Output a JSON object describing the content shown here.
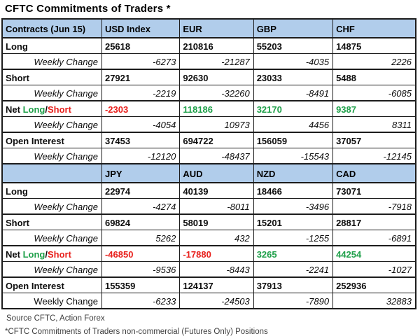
{
  "title": "CFTC Commitments of Traders *",
  "labels": {
    "long": "Long",
    "short": "Short",
    "open_interest": "Open Interest",
    "weekly_change": "Weekly Change"
  },
  "net_label": {
    "net": "Net ",
    "long": "Long",
    "slash": "/",
    "short": "Short"
  },
  "colors": {
    "header_blue": "#b1cdeb",
    "positive_green": "#1fa04a",
    "negative_red": "#e8201c",
    "border": "#1c1c1c"
  },
  "sections": [
    {
      "header": [
        "Contracts (Jun 15)",
        "USD Index",
        "EUR",
        "GBP",
        "CHF"
      ],
      "long": [
        "25618",
        "210816",
        "55203",
        "14875"
      ],
      "long_change": [
        "-6273",
        "-21287",
        "-4035",
        "2226"
      ],
      "short": [
        "27921",
        "92630",
        "23033",
        "5488"
      ],
      "short_change": [
        "-2219",
        "-32260",
        "-8491",
        "-6085"
      ],
      "net": [
        "-2303",
        "118186",
        "32170",
        "9387"
      ],
      "net_colors": [
        "red",
        "green",
        "green",
        "green"
      ],
      "net_change": [
        "-4054",
        "10973",
        "4456",
        "8311"
      ],
      "open_interest": [
        "37453",
        "694722",
        "156059",
        "37057"
      ],
      "open_interest_change": [
        "-12120",
        "-48437",
        "-15543",
        "-12145"
      ]
    },
    {
      "header": [
        "",
        "JPY",
        "AUD",
        "NZD",
        "CAD"
      ],
      "long": [
        "22974",
        "40139",
        "18466",
        "73071"
      ],
      "long_change": [
        "-4274",
        "-8011",
        "-3496",
        "-7918"
      ],
      "short": [
        "69824",
        "58019",
        "15201",
        "28817"
      ],
      "short_change": [
        "5262",
        "432",
        "-1255",
        "-6891"
      ],
      "net": [
        "-46850",
        "-17880",
        "3265",
        "44254"
      ],
      "net_colors": [
        "red",
        "red",
        "green",
        "green"
      ],
      "net_change": [
        "-9536",
        "-8443",
        "-2241",
        "-1027"
      ],
      "open_interest": [
        "155359",
        "124137",
        "37913",
        "252936"
      ],
      "open_interest_change": [
        "-6233",
        "-24503",
        "-7890",
        "32883"
      ]
    }
  ],
  "footer": {
    "source": "Source CFTC, Action Forex",
    "note": "*CFTC Commitments of Traders non-commercial (Futures Only) Positions"
  },
  "chart_data": {
    "type": "table",
    "title": "CFTC Commitments of Traders *",
    "date_label": "Jun 15",
    "columns": [
      "USD Index",
      "EUR",
      "GBP",
      "CHF",
      "JPY",
      "AUD",
      "NZD",
      "CAD"
    ],
    "rows": [
      {
        "metric": "Long",
        "values": [
          25618,
          210816,
          55203,
          14875,
          22974,
          40139,
          18466,
          73071
        ]
      },
      {
        "metric": "Long Weekly Change",
        "values": [
          -6273,
          -21287,
          -4035,
          2226,
          -4274,
          -8011,
          -3496,
          -7918
        ]
      },
      {
        "metric": "Short",
        "values": [
          27921,
          92630,
          23033,
          5488,
          69824,
          58019,
          15201,
          28817
        ]
      },
      {
        "metric": "Short Weekly Change",
        "values": [
          -2219,
          -32260,
          -8491,
          -6085,
          5262,
          432,
          -1255,
          -6891
        ]
      },
      {
        "metric": "Net Long/Short",
        "values": [
          -2303,
          118186,
          32170,
          9387,
          -46850,
          -17880,
          3265,
          44254
        ]
      },
      {
        "metric": "Net Weekly Change",
        "values": [
          -4054,
          10973,
          4456,
          8311,
          -9536,
          -8443,
          -2241,
          -1027
        ]
      },
      {
        "metric": "Open Interest",
        "values": [
          37453,
          694722,
          156059,
          37057,
          155359,
          124137,
          37913,
          252936
        ]
      },
      {
        "metric": "Open Interest Weekly Change",
        "values": [
          -12120,
          -48437,
          -15543,
          -12145,
          -6233,
          -24503,
          -7890,
          32883
        ]
      }
    ],
    "notes": [
      "Source CFTC, Action Forex",
      "*CFTC Commitments of Traders non-commercial (Futures Only) Positions"
    ]
  }
}
